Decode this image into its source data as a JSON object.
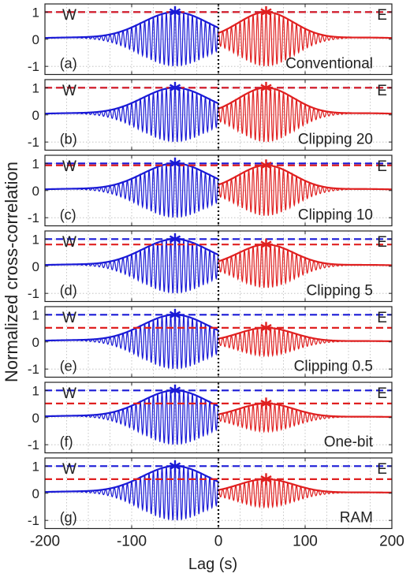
{
  "figure": {
    "ylabel": "Normalized cross-correlation",
    "xlabel": "Lag (s)"
  },
  "chart_data": [
    {
      "type": "line",
      "panel_id": "(a)",
      "method_label": "Conventional",
      "west_label": "W",
      "east_label": "E",
      "xlim": [
        -200,
        200
      ],
      "ylim": [
        -1.3,
        1.3
      ],
      "x_ticks": [
        -200,
        -100,
        0,
        100,
        200
      ],
      "y_ticks": [
        1,
        0,
        -1
      ],
      "x_tick_labels": [
        "-200",
        "-100",
        "0",
        "100",
        "200"
      ],
      "y_tick_labels": [
        "1",
        "0",
        "-1"
      ],
      "grid": true,
      "series": [
        {
          "color": "#1a1ad6",
          "peak_lag": -50,
          "peak_value": 1.0,
          "envelope_width": 38,
          "carrier_period": 5,
          "reference_level": 1.0
        },
        {
          "color": "#e02020",
          "peak_lag": 55,
          "peak_value": 1.0,
          "envelope_width": 32,
          "carrier_period": 5,
          "reference_level": 1.0
        }
      ]
    },
    {
      "type": "line",
      "panel_id": "(b)",
      "method_label": "Clipping 20",
      "west_label": "W",
      "east_label": "E",
      "xlim": [
        -200,
        200
      ],
      "ylim": [
        -1.3,
        1.3
      ],
      "x_ticks": [
        -200,
        -100,
        0,
        100,
        200
      ],
      "y_ticks": [
        1,
        0,
        -1
      ],
      "x_tick_labels": [
        "-200",
        "-100",
        "0",
        "100",
        "200"
      ],
      "y_tick_labels": [
        "1",
        "0",
        "-1"
      ],
      "grid": true,
      "series": [
        {
          "color": "#1a1ad6",
          "peak_lag": -50,
          "peak_value": 1.0,
          "envelope_width": 38,
          "carrier_period": 5,
          "reference_level": 1.0
        },
        {
          "color": "#e02020",
          "peak_lag": 55,
          "peak_value": 1.0,
          "envelope_width": 32,
          "carrier_period": 5,
          "reference_level": 1.0
        }
      ]
    },
    {
      "type": "line",
      "panel_id": "(c)",
      "method_label": "Clipping 10",
      "west_label": "W",
      "east_label": "E",
      "xlim": [
        -200,
        200
      ],
      "ylim": [
        -1.3,
        1.3
      ],
      "x_ticks": [
        -200,
        -100,
        0,
        100,
        200
      ],
      "y_ticks": [
        1,
        0,
        -1
      ],
      "x_tick_labels": [
        "-200",
        "-100",
        "0",
        "100",
        "200"
      ],
      "y_tick_labels": [
        "1",
        "0",
        "-1"
      ],
      "grid": true,
      "series": [
        {
          "color": "#1a1ad6",
          "peak_lag": -50,
          "peak_value": 1.0,
          "envelope_width": 38,
          "carrier_period": 5,
          "reference_level": 1.0
        },
        {
          "color": "#e02020",
          "peak_lag": 55,
          "peak_value": 0.93,
          "envelope_width": 32,
          "carrier_period": 5,
          "reference_level": 0.93
        }
      ]
    },
    {
      "type": "line",
      "panel_id": "(d)",
      "method_label": "Clipping 5",
      "west_label": "W",
      "east_label": "E",
      "xlim": [
        -200,
        200
      ],
      "ylim": [
        -1.3,
        1.3
      ],
      "x_ticks": [
        -200,
        -100,
        0,
        100,
        200
      ],
      "y_ticks": [
        1,
        0,
        -1
      ],
      "x_tick_labels": [
        "-200",
        "-100",
        "0",
        "100",
        "200"
      ],
      "y_tick_labels": [
        "1",
        "0",
        "-1"
      ],
      "grid": true,
      "series": [
        {
          "color": "#1a1ad6",
          "peak_lag": -50,
          "peak_value": 1.0,
          "envelope_width": 38,
          "carrier_period": 5,
          "reference_level": 1.0
        },
        {
          "color": "#e02020",
          "peak_lag": 55,
          "peak_value": 0.8,
          "envelope_width": 32,
          "carrier_period": 5,
          "reference_level": 0.8
        }
      ]
    },
    {
      "type": "line",
      "panel_id": "(e)",
      "method_label": "Clipping 0.5",
      "west_label": "W",
      "east_label": "E",
      "xlim": [
        -200,
        200
      ],
      "ylim": [
        -1.3,
        1.3
      ],
      "x_ticks": [
        -200,
        -100,
        0,
        100,
        200
      ],
      "y_ticks": [
        1,
        0,
        -1
      ],
      "x_tick_labels": [
        "-200",
        "-100",
        "0",
        "100",
        "200"
      ],
      "y_tick_labels": [
        "1",
        "0",
        "-1"
      ],
      "grid": true,
      "series": [
        {
          "color": "#1a1ad6",
          "peak_lag": -50,
          "peak_value": 1.0,
          "envelope_width": 38,
          "carrier_period": 5,
          "reference_level": 1.0
        },
        {
          "color": "#e02020",
          "peak_lag": 55,
          "peak_value": 0.52,
          "envelope_width": 32,
          "carrier_period": 5,
          "reference_level": 0.52
        }
      ]
    },
    {
      "type": "line",
      "panel_id": "(f)",
      "method_label": "One-bit",
      "west_label": "W",
      "east_label": "E",
      "xlim": [
        -200,
        200
      ],
      "ylim": [
        -1.3,
        1.3
      ],
      "x_ticks": [
        -200,
        -100,
        0,
        100,
        200
      ],
      "y_ticks": [
        1,
        0,
        -1
      ],
      "x_tick_labels": [
        "-200",
        "-100",
        "0",
        "100",
        "200"
      ],
      "y_tick_labels": [
        "1",
        "0",
        "-1"
      ],
      "grid": true,
      "series": [
        {
          "color": "#1a1ad6",
          "peak_lag": -50,
          "peak_value": 1.0,
          "envelope_width": 38,
          "carrier_period": 5,
          "reference_level": 1.0
        },
        {
          "color": "#e02020",
          "peak_lag": 55,
          "peak_value": 0.52,
          "envelope_width": 32,
          "carrier_period": 5,
          "reference_level": 0.52
        }
      ]
    },
    {
      "type": "line",
      "panel_id": "(g)",
      "method_label": "RAM",
      "west_label": "W",
      "east_label": "E",
      "xlim": [
        -200,
        200
      ],
      "ylim": [
        -1.3,
        1.3
      ],
      "x_ticks": [
        -200,
        -100,
        0,
        100,
        200
      ],
      "y_ticks": [
        1,
        0,
        -1
      ],
      "x_tick_labels": [
        "-200",
        "-100",
        "0",
        "100",
        "200"
      ],
      "y_tick_labels": [
        "1",
        "0",
        "-1"
      ],
      "grid": true,
      "series": [
        {
          "color": "#1a1ad6",
          "peak_lag": -50,
          "peak_value": 1.0,
          "envelope_width": 38,
          "carrier_period": 5,
          "reference_level": 1.0
        },
        {
          "color": "#e02020",
          "peak_lag": 55,
          "peak_value": 0.52,
          "envelope_width": 32,
          "carrier_period": 5,
          "reference_level": 0.52
        }
      ]
    }
  ]
}
